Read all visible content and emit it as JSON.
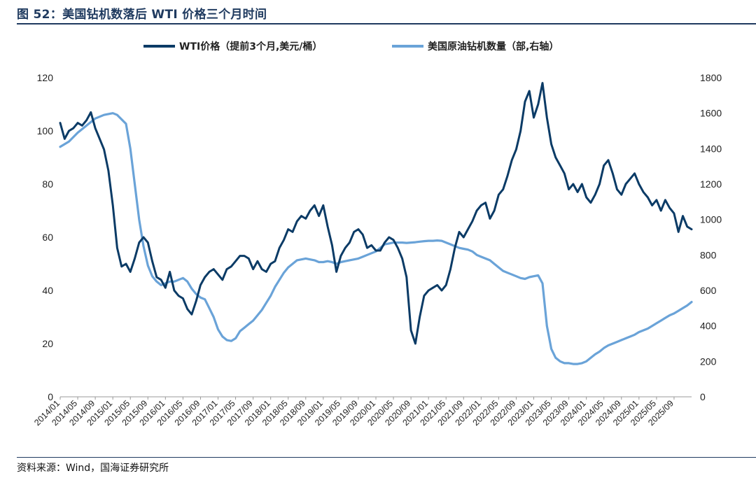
{
  "title": "图 52：美国钻机数落后 WTI 价格三个月时间",
  "source": "资料来源：Wind，国海证券研究所",
  "chart_data": {
    "type": "line",
    "left_axis": {
      "ylim": [
        0,
        120
      ],
      "ticks": [
        "0",
        "20",
        "40",
        "60",
        "80",
        "100",
        "120"
      ]
    },
    "right_axis": {
      "ylim": [
        0,
        1800
      ],
      "ticks": [
        "0",
        "200",
        "400",
        "600",
        "800",
        "1000",
        "1200",
        "1400",
        "1600",
        "1800"
      ]
    },
    "xlim": [
      0,
      144
    ],
    "x_ticks": [
      "2014/01",
      "2014/05",
      "2014/09",
      "2015/01",
      "2015/05",
      "2015/09",
      "2016/01",
      "2016/05",
      "2016/09",
      "2017/01",
      "2017/05",
      "2017/09",
      "2018/01",
      "2018/05",
      "2018/09",
      "2019/01",
      "2019/05",
      "2019/09",
      "2020/01",
      "2020/05",
      "2020/09",
      "2021/01",
      "2021/05",
      "2021/09",
      "2022/01",
      "2022/05",
      "2022/09",
      "2023/01",
      "2023/05",
      "2023/09",
      "2024/01",
      "2024/05",
      "2024/09",
      "2025/01",
      "2025/05",
      "2025/09"
    ],
    "series": [
      {
        "name": "WTI价格（提前3个月,美元/桶）",
        "axis": "left",
        "color": "#0b3b66",
        "points": [
          [
            0,
            103
          ],
          [
            1,
            97
          ],
          [
            2,
            100
          ],
          [
            3,
            101
          ],
          [
            4,
            103
          ],
          [
            5,
            102
          ],
          [
            6,
            104
          ],
          [
            7,
            107
          ],
          [
            8,
            101
          ],
          [
            9,
            97
          ],
          [
            10,
            93
          ],
          [
            11,
            85
          ],
          [
            12,
            72
          ],
          [
            13,
            56
          ],
          [
            14,
            49
          ],
          [
            15,
            50
          ],
          [
            16,
            47
          ],
          [
            17,
            52
          ],
          [
            18,
            58
          ],
          [
            19,
            60
          ],
          [
            20,
            58
          ],
          [
            21,
            51
          ],
          [
            22,
            45
          ],
          [
            23,
            44
          ],
          [
            24,
            41
          ],
          [
            25,
            47
          ],
          [
            26,
            40
          ],
          [
            27,
            38
          ],
          [
            28,
            37
          ],
          [
            29,
            33
          ],
          [
            30,
            31
          ],
          [
            31,
            36
          ],
          [
            32,
            42
          ],
          [
            33,
            45
          ],
          [
            34,
            47
          ],
          [
            35,
            48
          ],
          [
            36,
            46
          ],
          [
            37,
            44
          ],
          [
            38,
            48
          ],
          [
            39,
            49
          ],
          [
            40,
            51
          ],
          [
            41,
            53
          ],
          [
            42,
            53
          ],
          [
            43,
            52
          ],
          [
            44,
            48
          ],
          [
            45,
            51
          ],
          [
            46,
            48
          ],
          [
            47,
            47
          ],
          [
            48,
            50
          ],
          [
            49,
            51
          ],
          [
            50,
            56
          ],
          [
            51,
            59
          ],
          [
            52,
            63
          ],
          [
            53,
            62
          ],
          [
            54,
            66
          ],
          [
            55,
            68
          ],
          [
            56,
            67
          ],
          [
            57,
            70
          ],
          [
            58,
            72
          ],
          [
            59,
            68
          ],
          [
            60,
            72
          ],
          [
            61,
            64
          ],
          [
            62,
            57
          ],
          [
            63,
            47
          ],
          [
            64,
            53
          ],
          [
            65,
            56
          ],
          [
            66,
            58
          ],
          [
            67,
            62
          ],
          [
            68,
            63
          ],
          [
            69,
            61
          ],
          [
            70,
            56
          ],
          [
            71,
            57
          ],
          [
            72,
            55
          ],
          [
            73,
            55
          ],
          [
            74,
            58
          ],
          [
            75,
            60
          ],
          [
            76,
            59
          ],
          [
            77,
            56
          ],
          [
            78,
            52
          ],
          [
            79,
            45
          ],
          [
            80,
            25
          ],
          [
            81,
            20
          ],
          [
            82,
            30
          ],
          [
            83,
            38
          ],
          [
            84,
            40
          ],
          [
            85,
            41
          ],
          [
            86,
            42
          ],
          [
            87,
            40
          ],
          [
            88,
            42
          ],
          [
            89,
            48
          ],
          [
            90,
            56
          ],
          [
            91,
            62
          ],
          [
            92,
            60
          ],
          [
            93,
            63
          ],
          [
            94,
            66
          ],
          [
            95,
            70
          ],
          [
            96,
            72
          ],
          [
            97,
            73
          ],
          [
            98,
            67
          ],
          [
            99,
            70
          ],
          [
            100,
            76
          ],
          [
            101,
            78
          ],
          [
            102,
            83
          ],
          [
            103,
            89
          ],
          [
            104,
            93
          ],
          [
            105,
            100
          ],
          [
            106,
            111
          ],
          [
            107,
            115
          ],
          [
            108,
            105
          ],
          [
            109,
            110
          ],
          [
            110,
            118
          ],
          [
            111,
            105
          ],
          [
            112,
            95
          ],
          [
            113,
            90
          ],
          [
            114,
            87
          ],
          [
            115,
            84
          ],
          [
            116,
            78
          ],
          [
            117,
            80
          ],
          [
            118,
            77
          ],
          [
            119,
            80
          ],
          [
            120,
            75
          ],
          [
            121,
            73
          ],
          [
            122,
            76
          ],
          [
            123,
            80
          ],
          [
            124,
            87
          ],
          [
            125,
            89
          ],
          [
            126,
            84
          ],
          [
            127,
            78
          ],
          [
            128,
            76
          ],
          [
            129,
            80
          ],
          [
            130,
            82
          ],
          [
            131,
            84
          ],
          [
            132,
            80
          ],
          [
            133,
            77
          ],
          [
            134,
            75
          ],
          [
            135,
            72
          ],
          [
            136,
            74
          ],
          [
            137,
            70
          ],
          [
            138,
            74
          ],
          [
            139,
            71
          ],
          [
            140,
            69
          ],
          [
            141,
            62
          ],
          [
            142,
            68
          ],
          [
            143,
            64
          ],
          [
            144,
            63
          ]
        ]
      },
      {
        "name": "美国原油钻机数量（部,右轴）",
        "axis": "right",
        "color": "#6aa3d8",
        "points": [
          [
            0,
            1410
          ],
          [
            2,
            1440
          ],
          [
            4,
            1490
          ],
          [
            6,
            1530
          ],
          [
            8,
            1570
          ],
          [
            10,
            1590
          ],
          [
            12,
            1600
          ],
          [
            13,
            1590
          ],
          [
            15,
            1540
          ],
          [
            16,
            1400
          ],
          [
            17,
            1200
          ],
          [
            18,
            1000
          ],
          [
            19,
            850
          ],
          [
            20,
            740
          ],
          [
            21,
            680
          ],
          [
            22,
            650
          ],
          [
            23,
            630
          ],
          [
            24,
            640
          ],
          [
            25,
            650
          ],
          [
            26,
            650
          ],
          [
            27,
            660
          ],
          [
            28,
            670
          ],
          [
            29,
            650
          ],
          [
            30,
            610
          ],
          [
            31,
            580
          ],
          [
            32,
            560
          ],
          [
            33,
            550
          ],
          [
            34,
            500
          ],
          [
            35,
            450
          ],
          [
            36,
            380
          ],
          [
            37,
            340
          ],
          [
            38,
            320
          ],
          [
            39,
            315
          ],
          [
            40,
            330
          ],
          [
            41,
            370
          ],
          [
            42,
            390
          ],
          [
            43,
            410
          ],
          [
            44,
            430
          ],
          [
            45,
            460
          ],
          [
            46,
            490
          ],
          [
            47,
            530
          ],
          [
            48,
            570
          ],
          [
            49,
            620
          ],
          [
            50,
            660
          ],
          [
            51,
            700
          ],
          [
            52,
            730
          ],
          [
            53,
            750
          ],
          [
            54,
            770
          ],
          [
            55,
            775
          ],
          [
            56,
            780
          ],
          [
            57,
            775
          ],
          [
            58,
            770
          ],
          [
            59,
            760
          ],
          [
            60,
            760
          ],
          [
            61,
            765
          ],
          [
            62,
            760
          ],
          [
            63,
            750
          ],
          [
            64,
            760
          ],
          [
            65,
            765
          ],
          [
            66,
            770
          ],
          [
            67,
            775
          ],
          [
            68,
            780
          ],
          [
            69,
            790
          ],
          [
            70,
            800
          ],
          [
            71,
            810
          ],
          [
            72,
            820
          ],
          [
            73,
            840
          ],
          [
            74,
            860
          ],
          [
            75,
            865
          ],
          [
            76,
            870
          ],
          [
            77,
            870
          ],
          [
            78,
            870
          ],
          [
            79,
            868
          ],
          [
            80,
            870
          ],
          [
            81,
            872
          ],
          [
            82,
            875
          ],
          [
            83,
            878
          ],
          [
            84,
            880
          ],
          [
            85,
            880
          ],
          [
            86,
            882
          ],
          [
            87,
            880
          ],
          [
            88,
            870
          ],
          [
            89,
            860
          ],
          [
            90,
            850
          ],
          [
            91,
            840
          ],
          [
            92,
            835
          ],
          [
            93,
            830
          ],
          [
            94,
            820
          ],
          [
            95,
            800
          ],
          [
            96,
            790
          ],
          [
            97,
            780
          ],
          [
            98,
            770
          ],
          [
            99,
            750
          ],
          [
            100,
            730
          ],
          [
            101,
            710
          ],
          [
            102,
            700
          ],
          [
            103,
            690
          ],
          [
            104,
            680
          ],
          [
            105,
            670
          ],
          [
            106,
            665
          ],
          [
            107,
            675
          ],
          [
            108,
            680
          ],
          [
            109,
            685
          ],
          [
            110,
            640
          ],
          [
            111,
            400
          ],
          [
            112,
            270
          ],
          [
            113,
            220
          ],
          [
            114,
            200
          ],
          [
            115,
            190
          ],
          [
            116,
            190
          ],
          [
            117,
            185
          ],
          [
            118,
            185
          ],
          [
            119,
            190
          ],
          [
            120,
            200
          ],
          [
            121,
            220
          ],
          [
            122,
            240
          ],
          [
            123,
            255
          ],
          [
            124,
            275
          ],
          [
            125,
            290
          ],
          [
            126,
            300
          ],
          [
            127,
            310
          ],
          [
            128,
            320
          ],
          [
            129,
            330
          ],
          [
            130,
            340
          ],
          [
            131,
            350
          ],
          [
            132,
            365
          ],
          [
            133,
            375
          ],
          [
            134,
            385
          ],
          [
            135,
            400
          ],
          [
            136,
            415
          ],
          [
            137,
            430
          ],
          [
            138,
            445
          ],
          [
            139,
            460
          ],
          [
            140,
            470
          ],
          [
            141,
            485
          ],
          [
            142,
            500
          ],
          [
            143,
            515
          ],
          [
            144,
            535
          ]
        ]
      }
    ]
  }
}
